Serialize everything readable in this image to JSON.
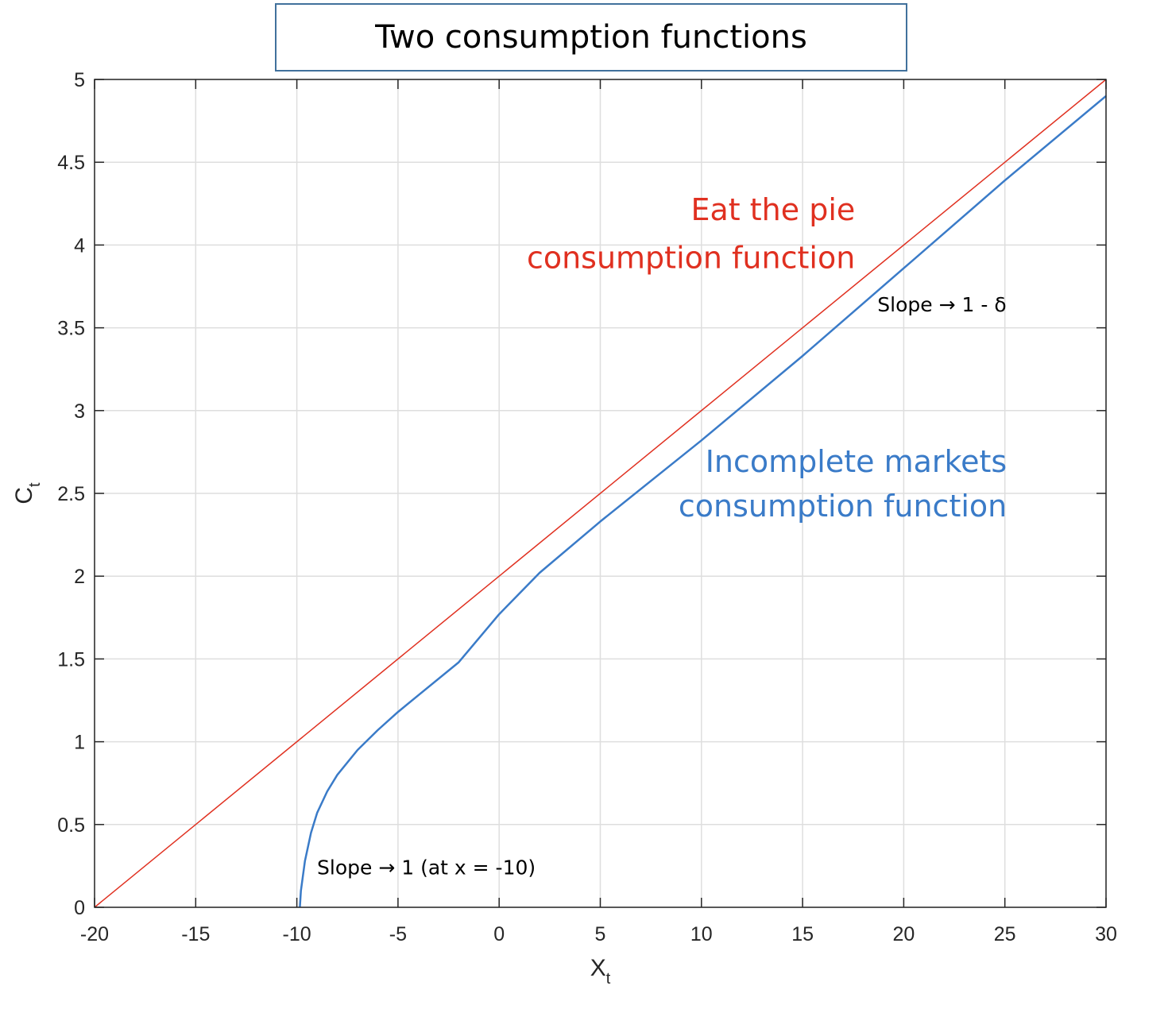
{
  "chart_data": {
    "type": "line",
    "title": "Two consumption functions",
    "xlabel": "X",
    "xlabel_sub": "t",
    "ylabel": "C",
    "ylabel_sub": "t",
    "xlim": [
      -20,
      30
    ],
    "ylim": [
      0,
      5
    ],
    "xticks": [
      -20,
      -15,
      -10,
      -5,
      0,
      5,
      10,
      15,
      20,
      25,
      30
    ],
    "yticks": [
      0,
      0.5,
      1,
      1.5,
      2,
      2.5,
      3,
      3.5,
      4,
      4.5,
      5
    ],
    "ytick_labels": [
      "0",
      "0.5",
      "1",
      "1.5",
      "2",
      "2.5",
      "3",
      "3.5",
      "4",
      "4.5",
      "5"
    ],
    "grid": true,
    "series": [
      {
        "color": "#e03020",
        "x": [
          -20,
          30
        ],
        "y": [
          0,
          5
        ]
      },
      {
        "color": "#3a7bc8",
        "x": [
          -9.85,
          -9.8,
          -9.6,
          -9.3,
          -9,
          -8.5,
          -8,
          -7,
          -6,
          -5,
          -4,
          -2,
          0,
          2,
          5,
          10,
          15,
          20,
          25,
          30
        ],
        "y": [
          0,
          0.1,
          0.28,
          0.45,
          0.57,
          0.7,
          0.8,
          0.95,
          1.07,
          1.18,
          1.28,
          1.48,
          1.77,
          2.02,
          2.33,
          2.82,
          3.33,
          3.86,
          4.39,
          4.9
        ]
      }
    ],
    "annotations": [
      {
        "id": "eat_pie_1",
        "text": "Eat the pie",
        "color": "#e03020",
        "at": [
          17.6,
          4.15
        ],
        "anchor": "end",
        "size": "big"
      },
      {
        "id": "eat_pie_2",
        "text": "consumption function",
        "color": "#e03020",
        "at": [
          17.6,
          3.86
        ],
        "anchor": "end",
        "size": "big"
      },
      {
        "id": "incomplete_1",
        "text": "Incomplete markets",
        "color": "#3a7bc8",
        "at": [
          25.1,
          2.63
        ],
        "anchor": "end",
        "size": "big"
      },
      {
        "id": "incomplete_2",
        "text": "consumption function",
        "color": "#3a7bc8",
        "at": [
          25.1,
          2.36
        ],
        "anchor": "end",
        "size": "big"
      },
      {
        "id": "slope_top",
        "text": "Slope → 1 - δ",
        "color": "#000000",
        "at": [
          18.7,
          3.6
        ],
        "anchor": "start",
        "size": "small"
      },
      {
        "id": "slope_bottom",
        "text": "Slope → 1 (at x = -10)",
        "color": "#000000",
        "at": [
          -9.0,
          0.2
        ],
        "anchor": "start",
        "size": "small"
      }
    ]
  }
}
